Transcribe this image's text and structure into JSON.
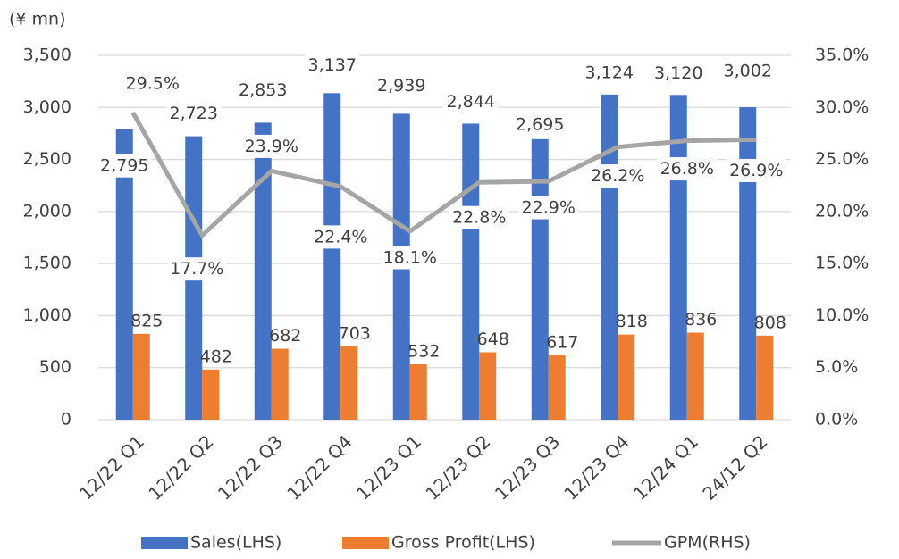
{
  "chart_data": {
    "type": "bar_line",
    "ylabel": "(¥ mn)",
    "categories": [
      "12/22 Q1",
      "12/22 Q2",
      "12/22 Q3",
      "12/22 Q4",
      "12/23 Q1",
      "12/23 Q2",
      "12/23 Q3",
      "12/23 Q4",
      "12/24 Q1",
      "24/12 Q2"
    ],
    "series": [
      {
        "name": "Sales(LHS)",
        "color": "#4472c4",
        "kind": "bar",
        "values": [
          2795,
          2723,
          2853,
          3137,
          2939,
          2844,
          2695,
          3124,
          3120,
          3002
        ],
        "value_labels": [
          "2,795",
          "2,723",
          "2,853",
          "3,137",
          "2,939",
          "2,844",
          "2,695",
          "3,124",
          "3,120",
          "3,002"
        ]
      },
      {
        "name": "Gross Profit(LHS)",
        "color": "#ed7d31",
        "kind": "bar",
        "values": [
          825,
          482,
          682,
          703,
          532,
          648,
          617,
          818,
          836,
          808
        ]
      },
      {
        "name": "GPM(RHS)",
        "color": "#a5a5a5",
        "kind": "line",
        "axis": "y2",
        "values": [
          29.5,
          17.7,
          23.9,
          22.4,
          18.1,
          22.8,
          22.9,
          26.2,
          26.8,
          26.9
        ],
        "value_labels": [
          "29.5%",
          "17.7%",
          "23.9%",
          "22.4%",
          "18.1%",
          "22.8%",
          "22.9%",
          "26.2%",
          "26.8%",
          "26.9%"
        ]
      }
    ],
    "ylim": [
      0,
      3500
    ],
    "yticks": [
      0,
      500,
      {
        "value": 1000,
        "label": "1,000"
      },
      {
        "value": 1500,
        "label": "1,500"
      },
      {
        "value": 2000,
        "label": "2,000"
      },
      {
        "value": 2500,
        "label": "2,500"
      },
      {
        "value": 3000,
        "label": "3,000"
      },
      {
        "value": 3500,
        "label": "3,500"
      }
    ],
    "y2lim": [
      0,
      35
    ],
    "y2ticks": [
      {
        "value": 0,
        "label": "0.0%"
      },
      {
        "value": 5,
        "label": "5.0%"
      },
      {
        "value": 10,
        "label": "10.0%"
      },
      {
        "value": 15,
        "label": "15.0%"
      },
      {
        "value": 20,
        "label": "20.0%"
      },
      {
        "value": 25,
        "label": "25.0%"
      },
      {
        "value": 30,
        "label": "30.0%"
      },
      {
        "value": 35,
        "label": "35.0%"
      }
    ],
    "grid": true,
    "legend": "bottom"
  }
}
